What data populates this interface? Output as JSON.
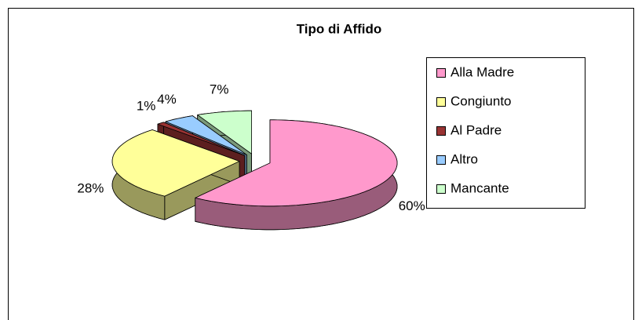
{
  "chart_data": {
    "type": "pie3d",
    "title": "Tipo di Affido",
    "categories": [
      "Alla Madre",
      "Congiunto",
      "Al Padre",
      "Altro",
      "Mancante"
    ],
    "values": [
      60,
      28,
      1,
      4,
      7
    ],
    "value_labels": [
      "60%",
      "28%",
      "1%",
      "4%",
      "7%"
    ],
    "colors": [
      "#FF99CC",
      "#FFFF99",
      "#993333",
      "#99CCFF",
      "#CCFFCC"
    ],
    "legend": "right"
  }
}
